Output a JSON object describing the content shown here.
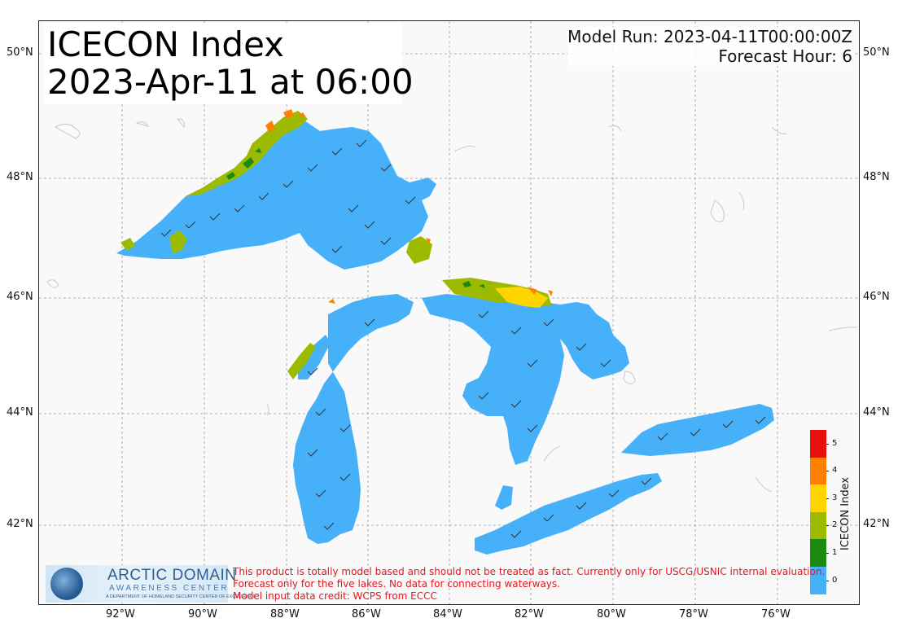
{
  "title": {
    "line1": "ICECON Index",
    "line2": "2023-Apr-11 at 06:00"
  },
  "model_run": {
    "line1": "Model Run: 2023-04-11T00:00:00Z",
    "line2": "Forecast Hour: 6"
  },
  "lat_labels": [
    "50°N",
    "48°N",
    "46°N",
    "44°N",
    "42°N"
  ],
  "lon_labels": [
    "92°W",
    "90°W",
    "88°W",
    "86°W",
    "84°W",
    "82°W",
    "80°W",
    "78°W",
    "76°W"
  ],
  "colorbar": {
    "label": "ICECON Index",
    "ticks": [
      "5",
      "4",
      "3",
      "2",
      "1",
      "0"
    ],
    "colors": [
      "#e8100f",
      "#ff8000",
      "#ffd400",
      "#9cbb00",
      "#1b8a10",
      "#46b1f9"
    ]
  },
  "colors": {
    "water": "#46b1f9",
    "gridline": "#9a9a9a",
    "disclaimer": "#e8141e"
  },
  "logo": {
    "line1": "ARCTIC DOMAIN",
    "line2": "AWARENESS CENTER",
    "line3": "A DEPARTMENT OF HOMELAND SECURITY CENTER OF EXCELLENCE"
  },
  "disclaimer": {
    "line1": "This product is totally model based and should not be treated as fact. Currently only for USCG/USNIC internal evaluation.",
    "line2": "Forecast only for the five lakes. No data for connecting waterways.",
    "line3": "Model input data credit: WCPS from ECCC"
  }
}
